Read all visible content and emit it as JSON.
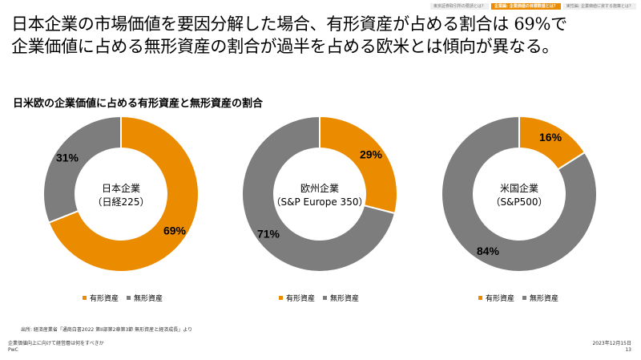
{
  "nav": {
    "tabs": [
      {
        "label": "東京証券取引所の要請とは？",
        "active": false
      },
      {
        "label": "企業編: 企業価値の目標数値とは？",
        "active": true
      },
      {
        "label": "実性編: 企業価値に資する施策とは？",
        "active": false
      }
    ]
  },
  "headline": {
    "line1": "日本企業の市場価値を要因分解した場合、有形資産が占める割合は 69%で",
    "line2": "企業価値に占める無形資産の割合が過半を占める欧米とは傾向が異なる。"
  },
  "subtitle": "日米欧の企業価値に占める有形資産と無形資産の割合",
  "colors": {
    "tangible": "#eb8c00",
    "intangible": "#7d7d7d"
  },
  "chart_data": [
    {
      "type": "pie",
      "title": "日本企業",
      "subtitle": "（日経225）",
      "categories": [
        "有形資産",
        "無形資産"
      ],
      "values": [
        69,
        31
      ],
      "labels": [
        "69%",
        "31%"
      ]
    },
    {
      "type": "pie",
      "title": "欧州企業",
      "subtitle": "（S&P Europe 350）",
      "categories": [
        "有形資産",
        "無形資産"
      ],
      "values": [
        29,
        71
      ],
      "labels": [
        "29%",
        "71%"
      ]
    },
    {
      "type": "pie",
      "title": "米国企業",
      "subtitle": "（S&P500）",
      "categories": [
        "有形資産",
        "無形資産"
      ],
      "values": [
        16,
        84
      ],
      "labels": [
        "16%",
        "84%"
      ]
    }
  ],
  "legend": {
    "tangible": "有形資産",
    "intangible": "無形資産"
  },
  "source": "出所: 経済産業省「通商白書2022 第II部第2章第3節 無形資産と経済成長」より",
  "footer": {
    "doc_title": "企業価値向上に向けて経営層は何をすべきか",
    "brand": "PwC",
    "date": "2023年12月15日",
    "page": "13"
  }
}
